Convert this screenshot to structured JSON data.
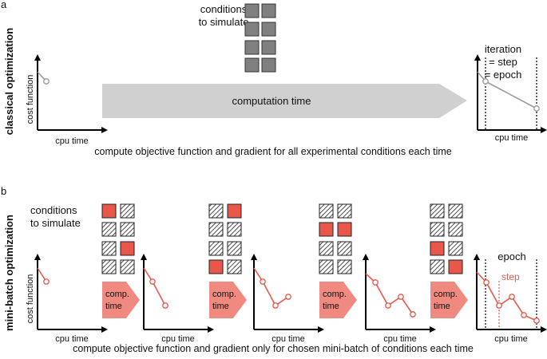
{
  "colors": {
    "accent": "#e8574a",
    "accent_light": "#f08a80",
    "gray": "#808080",
    "arrow_gray": "#d0d0d0",
    "line_gray": "#999999"
  },
  "panel_a": {
    "label": "a",
    "title": "classical optimization",
    "conditions_line1": "conditions",
    "conditions_line2": "to simulate",
    "arrow_label": "computation time",
    "y_axis": "cost function",
    "x_axis": "cpu time",
    "annotation": [
      "iteration",
      "= step",
      "= epoch"
    ],
    "caption": "compute objective function and gradient for all experimental conditions each time"
  },
  "panel_b": {
    "label": "b",
    "title": "mini-batch optimization",
    "conditions_line1": "conditions",
    "conditions_line2": "to simulate",
    "arrow_label_1": "comp.",
    "arrow_label_2": "time",
    "y_axis": "cost function",
    "x_axis": "cpu time",
    "epoch_label": "epoch",
    "step_label": "step",
    "caption": "compute objective function and gradient only for chosen mini-batch of conditions each time",
    "selected_conditions": [
      [
        [
          0,
          0
        ],
        [
          2,
          1
        ]
      ],
      [
        [
          0,
          1
        ],
        [
          3,
          0
        ]
      ],
      [
        [
          1,
          0
        ],
        [
          1,
          1
        ]
      ],
      [
        [
          2,
          0
        ],
        [
          3,
          1
        ]
      ]
    ]
  }
}
